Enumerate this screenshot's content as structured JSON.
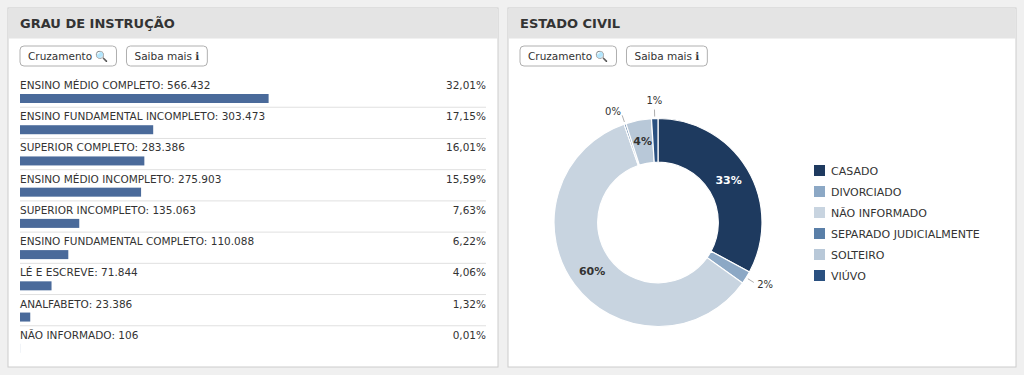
{
  "chart_data": [
    {
      "type": "bar",
      "title": "GRAU DE INSTRUÇÃO",
      "orientation": "horizontal",
      "categories": [
        "ENSINO MÉDIO COMPLETO: 566.432",
        "ENSINO FUNDAMENTAL INCOMPLETO: 303.473",
        "SUPERIOR COMPLETO: 283.386",
        "ENSINO MÉDIO INCOMPLETO: 275.903",
        "SUPERIOR INCOMPLETO: 135.063",
        "ENSINO FUNDAMENTAL COMPLETO: 110.088",
        "LÉ E ESCREVE: 71.844",
        "ANALFABETO: 23.386",
        "NÃO INFORMADO: 106"
      ],
      "values": [
        32.01,
        17.15,
        16.01,
        15.59,
        7.63,
        6.22,
        4.06,
        1.32,
        0.01
      ],
      "value_labels": [
        "32,01%",
        "17,15%",
        "16,01%",
        "15,59%",
        "7,63%",
        "6,22%",
        "4,06%",
        "1,32%",
        "0,01%"
      ],
      "data_labels": true,
      "color": "#4a6a9a",
      "xlim": [
        0,
        60
      ],
      "tick_labels": "y",
      "annotations": [
        "Cruzamento  🔍",
        "Saiba mais  ℹ"
      ]
    },
    {
      "type": "donut",
      "title": "ESTADO CIVIL",
      "categories": [
        "CASADO",
        "DIVORCIADO",
        "NÃO INFORMADO",
        "SEPARADO JUDICIALMENTE",
        "SOLTEIRO",
        "VIÚVO"
      ],
      "values": [
        33,
        2,
        60,
        0.3,
        4,
        1
      ],
      "value_labels": [
        "33%",
        "2%",
        "60%",
        "0%",
        "4%",
        "1%"
      ],
      "data_labels": true,
      "colors": [
        "#1e3a5f",
        "#8ca8c5",
        "#c8d4e0",
        "#5a7fa8",
        "#b8c8d8",
        "#2a5080"
      ],
      "legend": "right",
      "annotations": [
        "Cruzamento  🔍",
        "Saiba mais  ℹ"
      ]
    }
  ]
}
